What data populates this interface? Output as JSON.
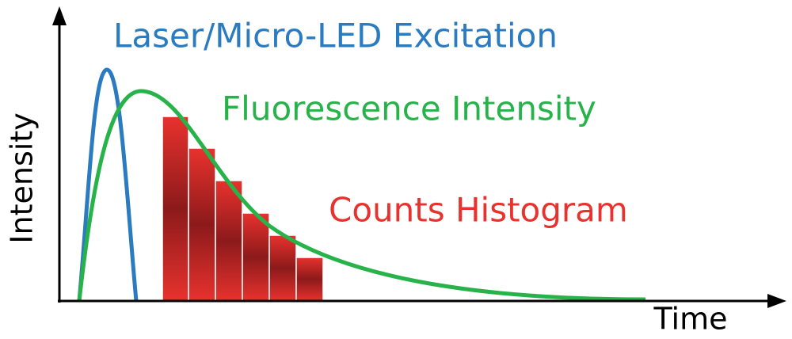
{
  "labels": {
    "excitation": "Laser/Micro-LED Excitation",
    "fluorescence": "Fluorescence Intensity",
    "histogram": "Counts Histogram",
    "y_axis": "Intensity",
    "x_axis": "Time"
  }
}
